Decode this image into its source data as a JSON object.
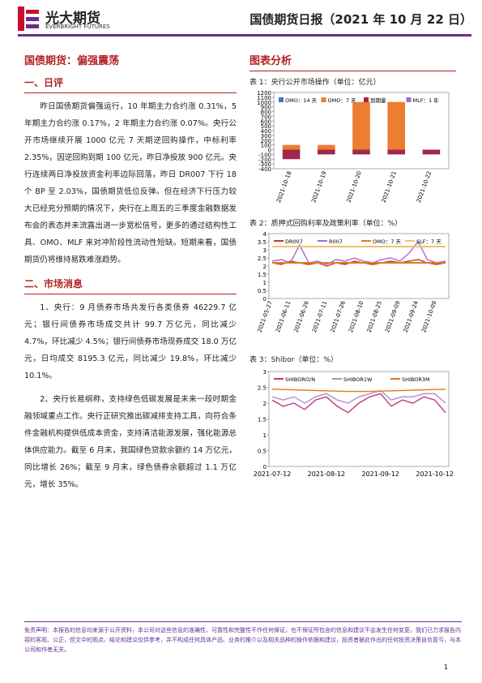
{
  "header": {
    "logo": "光大期货",
    "logo_en": "EVERBRIGHT FUTURES",
    "title": "国债期货日报（2021 年 10 月 22 日）"
  },
  "left": {
    "headline": "国债期货：偏强震荡",
    "sections": [
      {
        "heading": "一、日评",
        "paragraphs": [
          "昨日国债期货偏强运行，10 年期主力合约涨 0.31%，5 年期主力合约涨 0.17%，2 年期主力合约涨 0.07%。央行公开市场继续开展 1000 亿元 7 天期逆回购操作，中标利率 2.35%，因逆回购到期 100 亿元，昨日净投放 900 亿元。央行连续两日净投放资金利率边际回落，昨日 DR007 下行 18 个 BP 至 2.03%，国债期货低位反弹。但在经济下行压力较大已经充分预期的情况下，央行在上周五的三季度金融数据发布会的表态并未流露出进一步宽松信号，更多的通过结构性工具、OMO、MLF 来对冲阶段性流动性短缺。短期来看，国债期货仍将维持易跌难涨趋势。"
        ]
      },
      {
        "heading": "二、市场消息",
        "paragraphs": [
          "1、央行：9 月债券市场共发行各类债券 46229.7 亿元；银行间债券市场成交共计 99.7 万亿元，同比减少 4.7%，环比减少 4.5%；银行间债券市场现券成交 18.0 万亿元，日均成交 8195.3 亿元，同比减少 19.8%，环比减少 10.1%。",
          "2、央行长易纲称，支持绿色低碳发展是未来一段时期金融领域重点工作。央行正研究推出碳减排支持工具，向符合条件金融机构提供低成本资金，支持清洁能源发展，强化能源总体供应能力。截至 6 月末，我国绿色贷款余额约 14 万亿元，同比增长 26%；截至 9 月末，绿色债券余额超过 1.1 万亿元，增长 35%。"
        ]
      }
    ]
  },
  "right": {
    "heading": "图表分析"
  },
  "chart_data": [
    {
      "type": "bar",
      "title": "表 1：央行公开市场操作（单位：亿元）",
      "categories": [
        "2021-10-18",
        "2021-10-19",
        "2021-10-20",
        "2021-10-21",
        "2021-10-22"
      ],
      "series": [
        {
          "name": "OMO：14 天",
          "color": "#4472c4",
          "values": [
            0,
            0,
            0,
            0,
            0
          ]
        },
        {
          "name": "OMO：7 天",
          "color": "#ed7d31",
          "values": [
            100,
            100,
            1000,
            1000,
            0
          ]
        },
        {
          "name": "到期量",
          "color": "#a0284a",
          "values": [
            -200,
            -100,
            -100,
            -100,
            -100
          ]
        },
        {
          "name": "MLF：1 年",
          "color": "#9b6fc6",
          "values": [
            0,
            0,
            0,
            0,
            0
          ]
        }
      ],
      "ylim": [
        -400,
        1200
      ],
      "yticks": [
        -400,
        -300,
        -200,
        -100,
        0,
        100,
        200,
        300,
        400,
        500,
        600,
        700,
        800,
        900,
        1000,
        1100,
        1200
      ],
      "grid": false
    },
    {
      "type": "line",
      "title": "表 2：质押式回购利率及政策利率（单位：%）",
      "categories": [
        "2021-05-27",
        null,
        "2021-06-11",
        null,
        "2021-06-26",
        null,
        "2021-07-11",
        null,
        "2021-07-26",
        null,
        "2021-08-10",
        null,
        "2021-08-25",
        null,
        "2021-09-09",
        null,
        "2021-09-24",
        null,
        "2021-10-09",
        null
      ],
      "series": [
        {
          "name": "DR007",
          "color": "#c0392b",
          "values": [
            2.2,
            2.1,
            2.3,
            2.2,
            2.1,
            2.2,
            2.0,
            2.2,
            2.1,
            2.3,
            2.2,
            2.1,
            2.2,
            2.3,
            2.2,
            2.3,
            2.4,
            2.2,
            2.1,
            2.2
          ]
        },
        {
          "name": "R007",
          "color": "#a66cc7",
          "values": [
            2.3,
            2.4,
            2.2,
            3.3,
            2.2,
            2.3,
            2.1,
            2.4,
            2.3,
            2.5,
            2.3,
            2.2,
            2.4,
            2.5,
            2.3,
            2.8,
            3.5,
            2.4,
            2.2,
            2.3
          ]
        },
        {
          "name": "OMO：7 天",
          "color": "#e07b24",
          "values": [
            2.2,
            2.2,
            2.2,
            2.2,
            2.2,
            2.2,
            2.2,
            2.2,
            2.2,
            2.2,
            2.2,
            2.2,
            2.2,
            2.2,
            2.2,
            2.2,
            2.2,
            2.2,
            2.2,
            2.2
          ]
        },
        {
          "name": "SLF：7 天",
          "color": "#f2c06b",
          "values": [
            3.2,
            3.2,
            3.2,
            3.2,
            3.2,
            3.2,
            3.2,
            3.2,
            3.2,
            3.2,
            3.2,
            3.2,
            3.2,
            3.2,
            3.2,
            3.2,
            3.2,
            3.2,
            3.2,
            3.2
          ]
        }
      ],
      "ylim": [
        0,
        4
      ],
      "yticks": [
        0,
        0.5,
        1,
        1.5,
        2,
        2.5,
        3,
        3.5,
        4
      ],
      "grid": false
    },
    {
      "type": "line",
      "title": "表 3：Shibor（单位：%）",
      "categories": [
        "2021-07-12",
        null,
        null,
        null,
        null,
        "2021-08-12",
        null,
        null,
        null,
        null,
        "2021-09-12",
        null,
        null,
        null,
        null,
        "2021-10-12",
        null
      ],
      "series": [
        {
          "name": "SHIBORO/N",
          "color": "#c0397a",
          "values": [
            2.1,
            1.9,
            2.0,
            1.8,
            2.1,
            2.2,
            1.9,
            1.7,
            2.0,
            2.2,
            2.3,
            1.9,
            2.1,
            2.0,
            2.2,
            2.1,
            1.7
          ]
        },
        {
          "name": "SHIBOR1W",
          "color": "#b48ad6",
          "values": [
            2.2,
            2.1,
            2.2,
            2.0,
            2.2,
            2.3,
            2.1,
            2.0,
            2.2,
            2.3,
            2.4,
            2.1,
            2.2,
            2.2,
            2.3,
            2.3,
            2.0
          ]
        },
        {
          "name": "SHIBOR3M",
          "color": "#e07b24",
          "values": [
            2.44,
            2.43,
            2.42,
            2.41,
            2.4,
            2.39,
            2.38,
            2.37,
            2.37,
            2.37,
            2.38,
            2.39,
            2.4,
            2.41,
            2.42,
            2.43,
            2.44
          ]
        }
      ],
      "ylim": [
        0,
        3
      ],
      "yticks": [
        0,
        0.5,
        1,
        1.5,
        2,
        2.5,
        3
      ],
      "grid": false
    }
  ],
  "disclaimer": "免责声明：本报告的信息均来源于公开资料，本公司对这些信息的准确性、可靠性和完整性不作任何保证，也不保证所包含的信息和建议不会发生任何变更。我们已力求报告内容的客观、公正，但文中的观点、结论和建议仅供参考，并不构成任何具体产品、业务的推介以及相关品种的操作依据和建议，投资者据此作出的任何投资决策自负盈亏，与本公司和作者无关。",
  "page": "1"
}
